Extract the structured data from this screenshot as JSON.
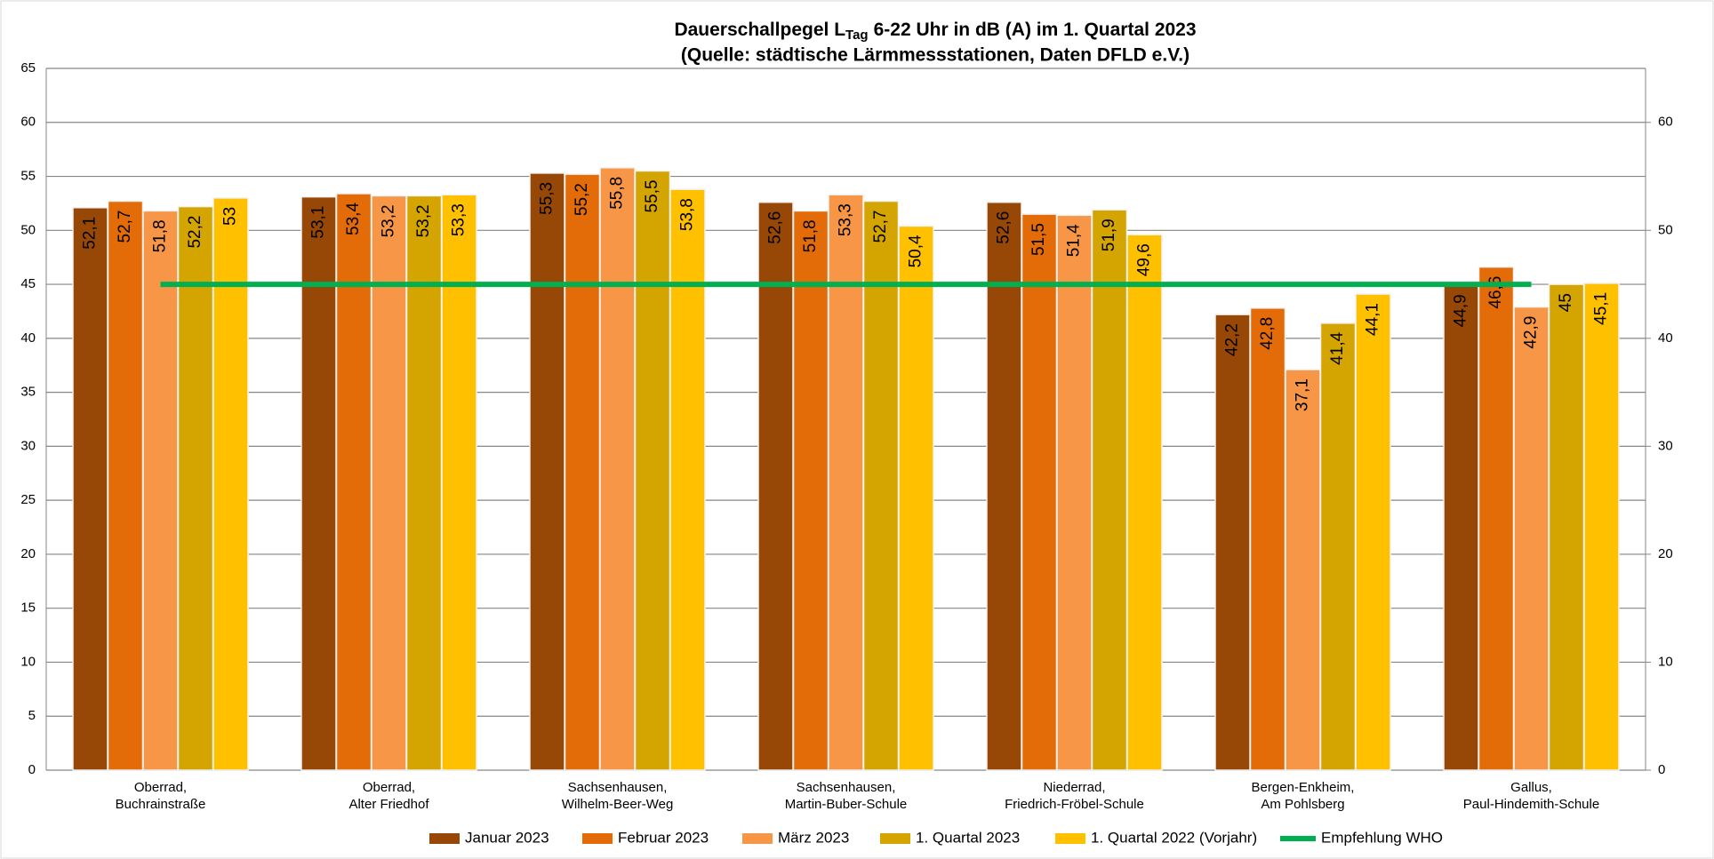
{
  "chart_data": {
    "type": "bar",
    "title": {
      "main": "Dauerschallpegel L",
      "subscript": "Tag",
      "rest": "6-22 Uhr in dB (A) im 1. Quartal 2023"
    },
    "subtitle": "(Quelle: städtische Lärmmessstationen, Daten DFLD e.V.)",
    "categories": [
      [
        "Oberrad,",
        "Buchrainstraße"
      ],
      [
        "Oberrad,",
        "Alter Friedhof"
      ],
      [
        "Sachsenhausen,",
        "Wilhelm-Beer-Weg"
      ],
      [
        "Sachsenhausen,",
        "Martin-Buber-Schule"
      ],
      [
        "Niederrad,",
        "Friedrich-Fröbel-Schule"
      ],
      [
        "Bergen-Enkheim,",
        "Am Pohlsberg"
      ],
      [
        "Gallus,",
        "Paul-Hindemith-Schule"
      ]
    ],
    "series": [
      {
        "name": "Januar 2023",
        "color": "#974706",
        "values": [
          52.1,
          53.1,
          55.3,
          52.6,
          52.6,
          42.2,
          44.9
        ],
        "value_labels": [
          "52,1",
          "53,1",
          "55,3",
          "52,6",
          "52,6",
          "42,2",
          "44,9"
        ]
      },
      {
        "name": "Februar 2023",
        "color": "#E36C09",
        "values": [
          52.7,
          53.4,
          55.2,
          51.8,
          51.5,
          42.8,
          46.6
        ],
        "value_labels": [
          "52,7",
          "53,4",
          "55,2",
          "51,8",
          "51,5",
          "42,8",
          "46,6"
        ]
      },
      {
        "name": "März 2023",
        "color": "#F79646",
        "values": [
          51.8,
          53.2,
          55.8,
          53.3,
          51.4,
          37.1,
          42.9
        ],
        "value_labels": [
          "51,8",
          "53,2",
          "55,8",
          "53,3",
          "51,4",
          "37,1",
          "42,9"
        ]
      },
      {
        "name": "1. Quartal 2023",
        "color": "#D4A500",
        "values": [
          52.2,
          53.2,
          55.5,
          52.7,
          51.9,
          41.4,
          45
        ],
        "value_labels": [
          "52,2",
          "53,2",
          "55,5",
          "52,7",
          "51,9",
          "41,4",
          "45"
        ]
      },
      {
        "name": "1. Quartal 2022 (Vorjahr)",
        "color": "#FFC000",
        "values": [
          53,
          53.3,
          53.8,
          50.4,
          49.6,
          44.1,
          45.1
        ],
        "value_labels": [
          "53",
          "53,3",
          "53,8",
          "50,4",
          "49,6",
          "44,1",
          "45,1"
        ]
      },
      {
        "name": "Empfehlung WHO",
        "type": "line",
        "color": "#00B050",
        "values": [
          45,
          45,
          45,
          45,
          45,
          45,
          45
        ]
      }
    ],
    "ylim": [
      0,
      65
    ],
    "yticks": [
      0,
      5,
      10,
      15,
      20,
      25,
      30,
      35,
      40,
      45,
      50,
      55,
      60,
      65
    ],
    "y2lim": [
      0,
      65
    ],
    "y2ticks": [
      0,
      10,
      20,
      30,
      40,
      50,
      60
    ],
    "grid": true,
    "legend": "bottom"
  }
}
